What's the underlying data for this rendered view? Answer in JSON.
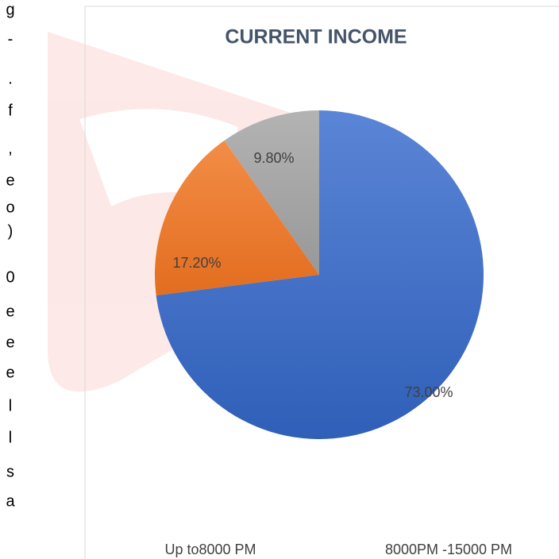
{
  "chart_data": {
    "type": "pie",
    "title": "CURRENT INCOME",
    "categories": [
      "Up to8000 PM",
      "8000PM -15000 PM",
      null
    ],
    "values": [
      73.0,
      17.2,
      9.8
    ],
    "value_labels": [
      "73.00%",
      "17.20%",
      "9.80%"
    ],
    "colors": [
      "#4472c4",
      "#ed7d31",
      "#a5a5a5"
    ]
  },
  "side_text": [
    "g",
    "-",
    ".",
    "f",
    ",",
    "e",
    "o",
    ")",
    "0",
    "e",
    "e",
    "e",
    "l",
    "l",
    "s",
    "a"
  ]
}
